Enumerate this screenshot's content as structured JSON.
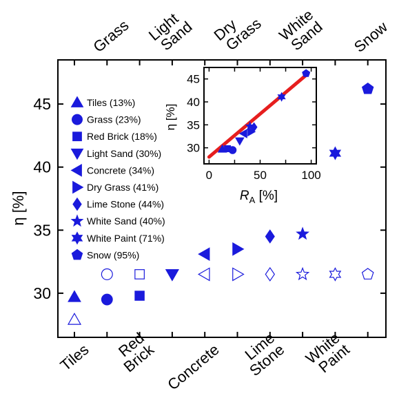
{
  "chart_data": [
    {
      "type": "scatter",
      "ylabel": "η [%]",
      "ylim": [
        26.5,
        48.5
      ],
      "yticks": [
        30,
        35,
        40,
        45
      ],
      "categories": [
        "Tiles",
        "Grass",
        "Red Brick",
        "Light Sand",
        "Concrete",
        "Dry Grass",
        "Lime Stone",
        "White Sand",
        "White Paint",
        "Snow"
      ],
      "x_bottom_labels": [
        {
          "category": "Tiles",
          "text": "Tiles"
        },
        {
          "category": "Red Brick",
          "text": "Red Brick"
        },
        {
          "category": "Concrete",
          "text": "Concrete"
        },
        {
          "category": "Lime Stone",
          "text": "Lime Stone"
        },
        {
          "category": "White Paint",
          "text": "White Paint"
        }
      ],
      "x_top_labels": [
        {
          "category": "Grass",
          "text": "Grass"
        },
        {
          "category": "Light Sand",
          "text": "Light Sand"
        },
        {
          "category": "Dry Grass",
          "text": "Dry Grass"
        },
        {
          "category": "White Sand",
          "text": "White Sand"
        },
        {
          "category": "Snow",
          "text": "Snow"
        }
      ],
      "color": "#1a1adc",
      "series": [
        {
          "marker_style": "filled",
          "points": [
            {
              "category": "Tiles",
              "marker": "triangle-up",
              "y": 29.7
            },
            {
              "category": "Grass",
              "marker": "circle",
              "y": 29.5
            },
            {
              "category": "Red Brick",
              "marker": "square",
              "y": 29.8
            },
            {
              "category": "Light Sand",
              "marker": "triangle-down",
              "y": 31.5
            },
            {
              "category": "Concrete",
              "marker": "triangle-left",
              "y": 33.1
            },
            {
              "category": "Dry Grass",
              "marker": "triangle-right",
              "y": 33.5
            },
            {
              "category": "Lime Stone",
              "marker": "diamond",
              "y": 34.5
            },
            {
              "category": "White Sand",
              "marker": "star5",
              "y": 34.7
            },
            {
              "category": "White Paint",
              "marker": "star6",
              "y": 41.1
            },
            {
              "category": "Snow",
              "marker": "pentagon",
              "y": 46.2
            }
          ]
        },
        {
          "marker_style": "open",
          "points": [
            {
              "category": "Tiles",
              "marker": "triangle-up",
              "y": 27.9
            },
            {
              "category": "Grass",
              "marker": "circle",
              "y": 31.5
            },
            {
              "category": "Red Brick",
              "marker": "square",
              "y": 31.5
            },
            {
              "category": "Light Sand",
              "marker": "triangle-down",
              "y": 31.5
            },
            {
              "category": "Concrete",
              "marker": "triangle-left",
              "y": 31.5
            },
            {
              "category": "Dry Grass",
              "marker": "triangle-right",
              "y": 31.5
            },
            {
              "category": "Lime Stone",
              "marker": "diamond",
              "y": 31.5
            },
            {
              "category": "White Sand",
              "marker": "star5",
              "y": 31.5
            },
            {
              "category": "White Paint",
              "marker": "star6",
              "y": 31.5
            },
            {
              "category": "Snow",
              "marker": "pentagon",
              "y": 31.5
            }
          ]
        }
      ],
      "legend": [
        {
          "marker": "triangle-up",
          "text": "Tiles (13%)"
        },
        {
          "marker": "circle",
          "text": "Grass (23%)"
        },
        {
          "marker": "square",
          "text": "Red Brick (18%)"
        },
        {
          "marker": "triangle-down",
          "text": "Light Sand (30%)"
        },
        {
          "marker": "triangle-left",
          "text": "Concrete (34%)"
        },
        {
          "marker": "triangle-right",
          "text": "Dry Grass (41%)"
        },
        {
          "marker": "diamond",
          "text": "Lime Stone (44%)"
        },
        {
          "marker": "star5",
          "text": "White Sand (40%)"
        },
        {
          "marker": "star6",
          "text": "White Paint (71%)"
        },
        {
          "marker": "pentagon",
          "text": "Snow (95%)"
        }
      ],
      "legend_position": "left",
      "grid": false
    },
    {
      "type": "scatter",
      "ylabel": "η [%]",
      "xlabel_main": "R",
      "xlabel_sub": "A",
      "xlabel_unit": "[%]",
      "xlim": [
        -5,
        105
      ],
      "ylim": [
        26.5,
        47.5
      ],
      "xticks": [
        0,
        25,
        50,
        75,
        100
      ],
      "yticks": [
        30,
        35,
        40,
        45
      ],
      "points": [
        {
          "x": 13,
          "y": 29.7,
          "marker": "triangle-up"
        },
        {
          "x": 23,
          "y": 29.5,
          "marker": "circle"
        },
        {
          "x": 18,
          "y": 29.8,
          "marker": "square"
        },
        {
          "x": 30,
          "y": 31.5,
          "marker": "triangle-down"
        },
        {
          "x": 34,
          "y": 33.1,
          "marker": "triangle-left"
        },
        {
          "x": 41,
          "y": 33.5,
          "marker": "triangle-right"
        },
        {
          "x": 44,
          "y": 34.5,
          "marker": "diamond"
        },
        {
          "x": 40,
          "y": 34.7,
          "marker": "star5"
        },
        {
          "x": 71,
          "y": 41.1,
          "marker": "star6"
        },
        {
          "x": 95,
          "y": 46.2,
          "marker": "pentagon"
        }
      ],
      "fit_line": {
        "x": [
          0,
          97
        ],
        "y": [
          28.0,
          46.2
        ],
        "color": "#e61e1e"
      },
      "color": "#1a1adc",
      "position": "top-right inset",
      "grid": false
    }
  ]
}
